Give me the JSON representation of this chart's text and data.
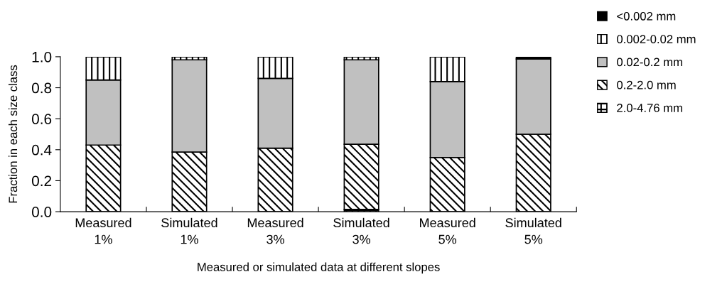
{
  "chart_data": {
    "type": "bar",
    "stacked": true,
    "xlabel": "Measured or simulated data at different slopes",
    "ylabel": "Fraction in each size class",
    "categories": [
      "Measured\n1%",
      "Simulated\n1%",
      "Measured\n3%",
      "Simulated\n3%",
      "Measured\n5%",
      "Simulated\n5%"
    ],
    "series": [
      {
        "name": "2.0-4.76 mm",
        "color": "#000000",
        "values": [
          0.0,
          0.0,
          0.0,
          0.015,
          0.0,
          0.0
        ]
      },
      {
        "name": "0.2-2.0 mm",
        "color": "#000000",
        "values": [
          0.43,
          0.385,
          0.41,
          0.42,
          0.35,
          0.5
        ]
      },
      {
        "name": "0.02-0.2 mm",
        "color": "#c0c0c0",
        "values": [
          0.42,
          0.595,
          0.45,
          0.545,
          0.49,
          0.485
        ]
      },
      {
        "name": "0.002-0.02 mm",
        "color": "#000000",
        "values": [
          0.15,
          0.02,
          0.14,
          0.02,
          0.16,
          0.0
        ]
      },
      {
        "name": "<0.002 mm",
        "color": "#000000",
        "values": [
          0.0,
          0.0,
          0.0,
          0.0,
          0.0,
          0.015
        ]
      }
    ],
    "ylim": [
      0,
      1.0
    ],
    "yticks": [
      {
        "value": 0,
        "label": "0.0"
      },
      {
        "value": 0.2,
        "label": "0.2"
      },
      {
        "value": 0.4,
        "label": "0.4"
      },
      {
        "value": 0.6,
        "label": "0.6"
      },
      {
        "value": 0.8,
        "label": "0.8"
      },
      {
        "value": 1.0,
        "label": "1.0"
      }
    ],
    "grid": false,
    "legend": "top right"
  }
}
